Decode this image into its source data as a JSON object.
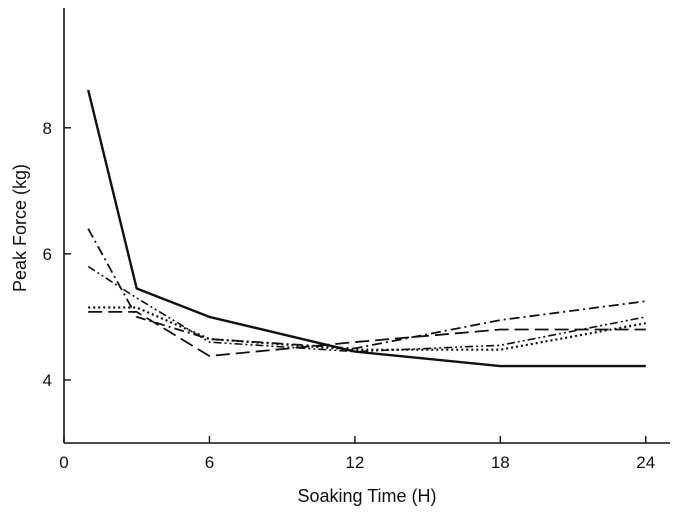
{
  "chart_data": {
    "type": "line",
    "title": "",
    "xlabel": "Soaking Time (H)",
    "ylabel": "Peak Force (kg)",
    "xlim": [
      0,
      25
    ],
    "ylim": [
      3,
      9.9
    ],
    "xticks": [
      0,
      6,
      12,
      18,
      24
    ],
    "yticks": [
      4,
      6,
      8
    ],
    "grid": false,
    "legend": "none",
    "line_color": "#111111",
    "series": [
      {
        "style": "solid",
        "x": [
          1,
          3,
          6,
          12,
          18,
          24
        ],
        "y": [
          8.6,
          5.45,
          5.0,
          4.45,
          4.22,
          4.22
        ]
      },
      {
        "style": "dash-dot",
        "x": [
          1,
          3,
          6,
          12,
          18,
          24
        ],
        "y": [
          6.4,
          5.0,
          4.65,
          4.5,
          4.95,
          5.25
        ]
      },
      {
        "style": "dash-dot-dot",
        "x": [
          1,
          3,
          6,
          12,
          18,
          24
        ],
        "y": [
          5.8,
          5.3,
          4.6,
          4.45,
          4.55,
          5.0
        ]
      },
      {
        "style": "dotted",
        "x": [
          1,
          3,
          6,
          12,
          18,
          24
        ],
        "y": [
          5.15,
          5.15,
          4.65,
          4.48,
          4.48,
          4.9
        ]
      },
      {
        "style": "dashed",
        "x": [
          1,
          3,
          6,
          12,
          18,
          24
        ],
        "y": [
          5.08,
          5.08,
          4.38,
          4.6,
          4.8,
          4.8
        ]
      }
    ]
  }
}
